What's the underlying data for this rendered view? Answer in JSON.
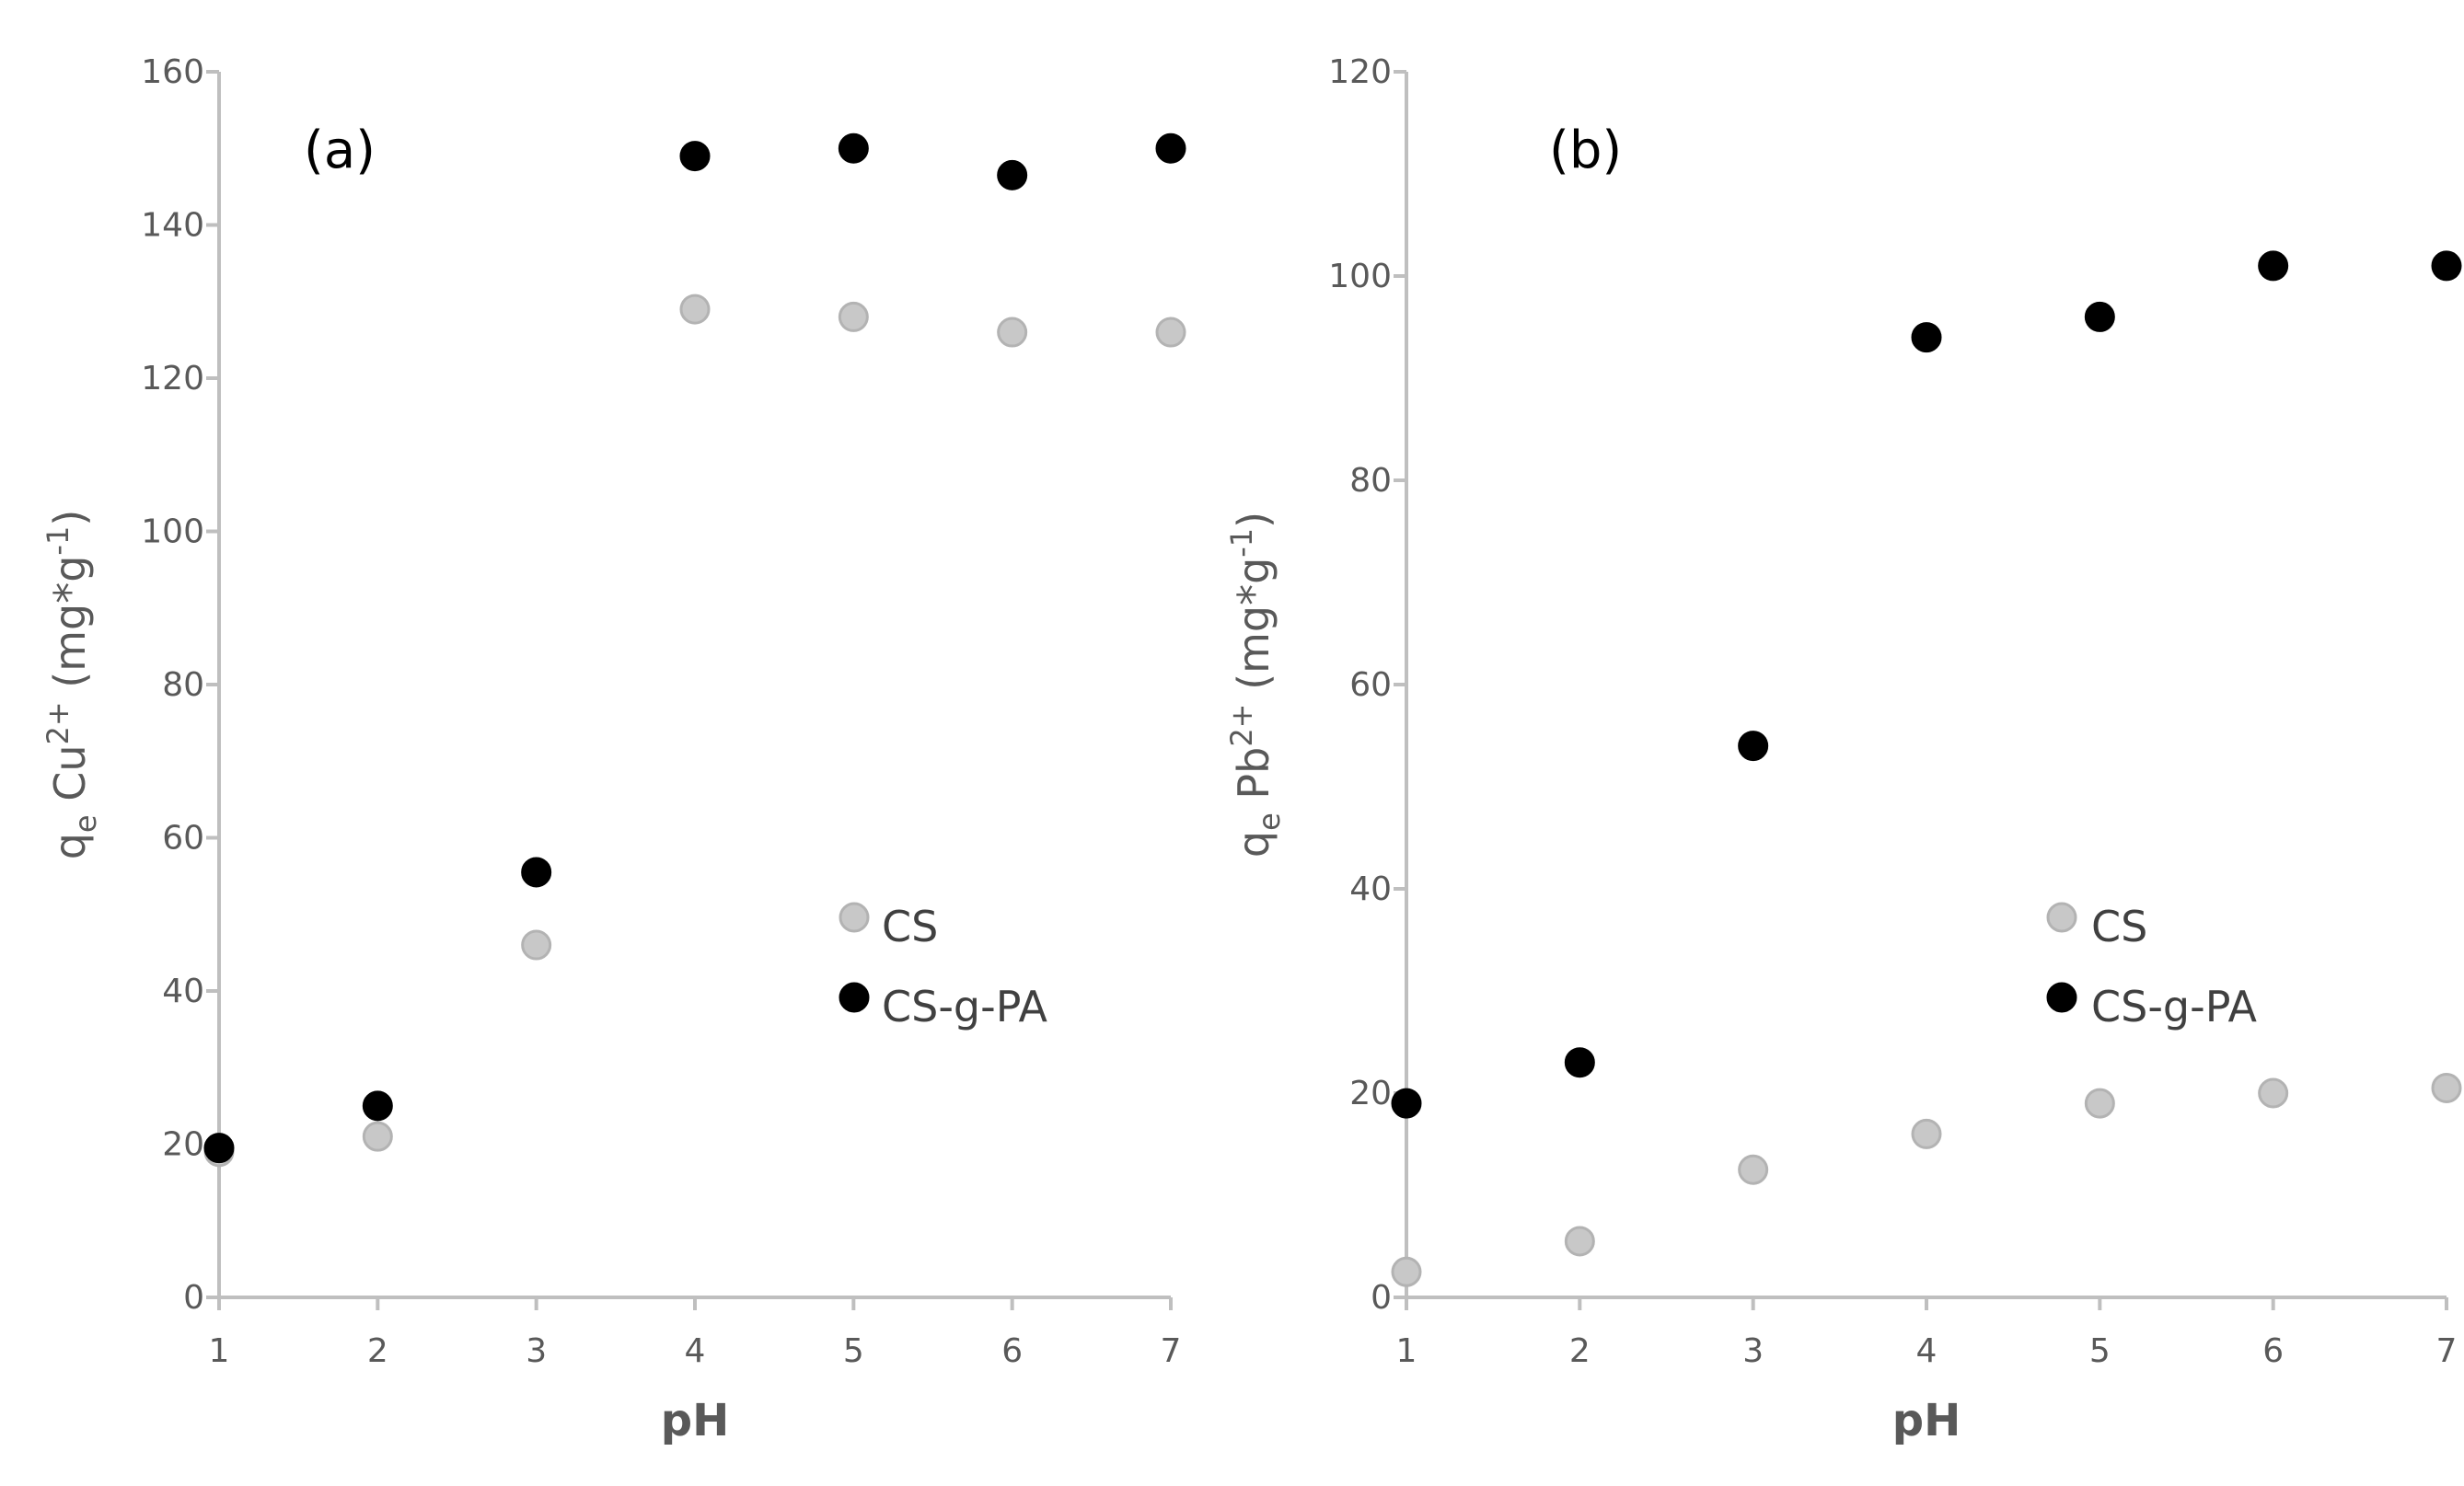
{
  "chart_data": [
    {
      "type": "scatter",
      "panel_label": "(a)",
      "xlabel": "pH",
      "ylabel": {
        "base": "q",
        "base_sub": "e",
        "mid": " Cu",
        "mid_sup": "2+",
        "unit": " (mg*g",
        "unit_sup": "-1",
        "end": ")"
      },
      "xlim": [
        1,
        7
      ],
      "ylim": [
        0,
        160
      ],
      "xticks": [
        "1",
        "2",
        "3",
        "4",
        "5",
        "6",
        "7"
      ],
      "yticks": [
        "0",
        "20",
        "40",
        "60",
        "80",
        "100",
        "120",
        "140",
        "160"
      ],
      "grid": false,
      "legend_placement": "center-right",
      "series": [
        {
          "name": "CS",
          "color": "#c8c8c8",
          "stroke": "#b3b3b3",
          "x": [
            1,
            2,
            3,
            4,
            5,
            6,
            7
          ],
          "y": [
            19,
            21,
            46,
            129,
            128,
            126,
            126
          ]
        },
        {
          "name": "CS-g-PA",
          "color": "#000000",
          "stroke": "#000000",
          "x": [
            1,
            2,
            3,
            4,
            5,
            6,
            7
          ],
          "y": [
            19.5,
            25,
            55.5,
            149,
            150,
            146.5,
            150
          ]
        }
      ]
    },
    {
      "type": "scatter",
      "panel_label": "(b)",
      "xlabel": "pH",
      "ylabel": {
        "base": "q",
        "base_sub": "e",
        "mid": " Pb",
        "mid_sup": "2+",
        "unit": " (mg*g",
        "unit_sup": "-1",
        "end": ")"
      },
      "xlim": [
        1,
        7
      ],
      "ylim": [
        0,
        120
      ],
      "xticks": [
        "1",
        "2",
        "3",
        "4",
        "5",
        "6",
        "7"
      ],
      "yticks": [
        "0",
        "20",
        "40",
        "60",
        "80",
        "100",
        "120"
      ],
      "grid": false,
      "legend_placement": "center-right",
      "series": [
        {
          "name": "CS",
          "color": "#c8c8c8",
          "stroke": "#b3b3b3",
          "x": [
            1,
            2,
            3,
            4,
            5,
            6,
            7
          ],
          "y": [
            2.5,
            5.5,
            12.5,
            16,
            19,
            20,
            20.5
          ]
        },
        {
          "name": "CS-g-PA",
          "color": "#000000",
          "stroke": "#000000",
          "x": [
            1,
            2,
            3,
            4,
            5,
            6,
            7
          ],
          "y": [
            19,
            23,
            54,
            94,
            96,
            101,
            101
          ]
        }
      ]
    }
  ]
}
